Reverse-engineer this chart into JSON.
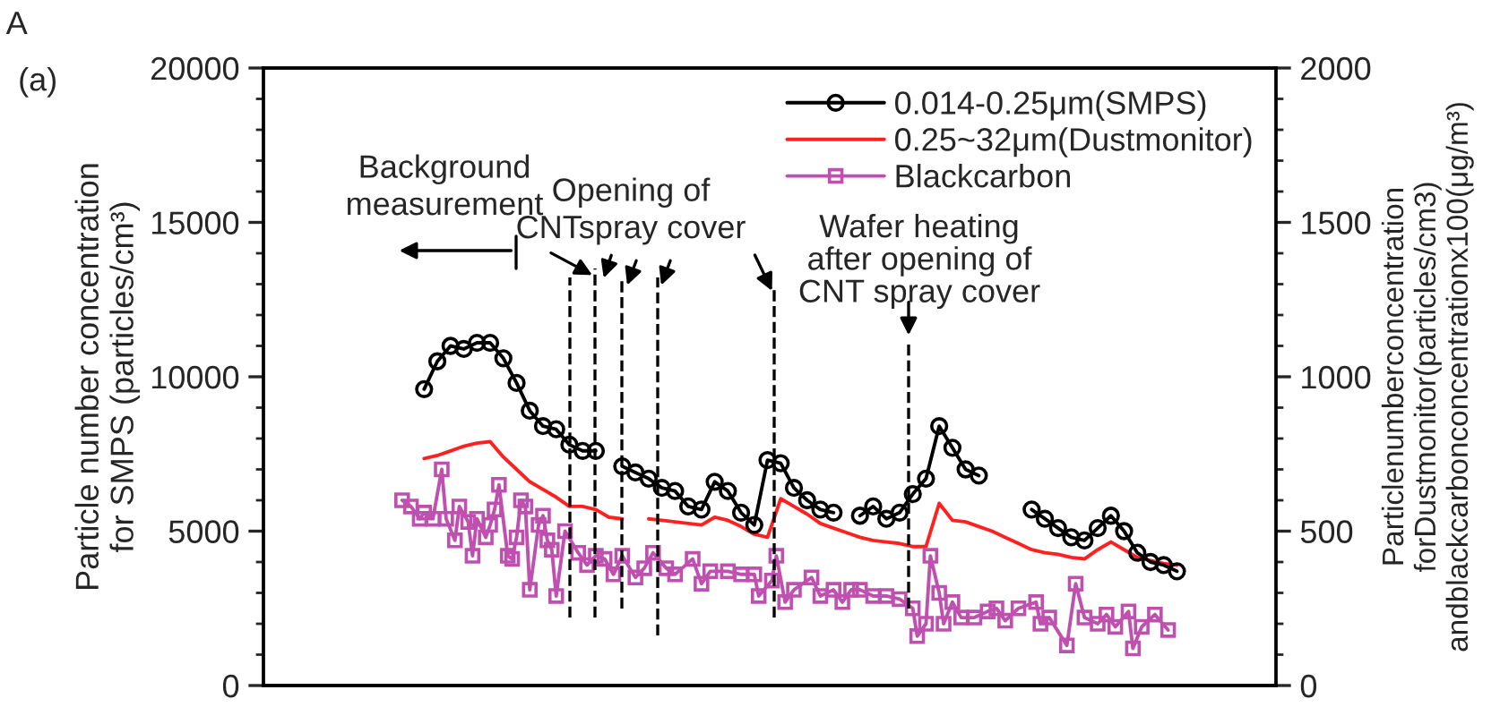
{
  "chart_data": {
    "type": "line",
    "categories": [
      null,
      null,
      null,
      null,
      null,
      null,
      null,
      null,
      null,
      null,
      null,
      null,
      null,
      null,
      null,
      null,
      null,
      null,
      null,
      null,
      null,
      null,
      null,
      null,
      null,
      null,
      null,
      null,
      null,
      null,
      null,
      null,
      null,
      null,
      null,
      null,
      null,
      null,
      null,
      null,
      null,
      null,
      null,
      null,
      null,
      null,
      null,
      null,
      null,
      null,
      null,
      null,
      null,
      null,
      null,
      null,
      null,
      null,
      null,
      null,
      null,
      null,
      null,
      null,
      null,
      null,
      null,
      null,
      null,
      null,
      null,
      null,
      null,
      null,
      null,
      null,
      null,
      null,
      null,
      null,
      null,
      null,
      null,
      null,
      null,
      null,
      null,
      null,
      null,
      null,
      null,
      null,
      null,
      null,
      null,
      null,
      null,
      null,
      null,
      null,
      null,
      null,
      null,
      null,
      null,
      null,
      null,
      null,
      null,
      null,
      null,
      null,
      null,
      null,
      null,
      null,
      null,
      null,
      null,
      null,
      null,
      null,
      null,
      null,
      null,
      null,
      null,
      null,
      null,
      null,
      null,
      null,
      null,
      null,
      null,
      null,
      null,
      null,
      null,
      null,
      null,
      null,
      null,
      null,
      null,
      null,
      null,
      null,
      null,
      null,
      null,
      null,
      null,
      null,
      null,
      null,
      null,
      null,
      null,
      null,
      null,
      null,
      null,
      null,
      null,
      null,
      null,
      null,
      null,
      null,
      null,
      null,
      null,
      null,
      null,
      null,
      null,
      null,
      null,
      null,
      null,
      null,
      null,
      null,
      null,
      null,
      null,
      null,
      null,
      null,
      null,
      null,
      null,
      null,
      null,
      null,
      null,
      null,
      null,
      null,
      null,
      null,
      null,
      null,
      null,
      null,
      null,
      null,
      null,
      null,
      null,
      null,
      null,
      null,
      null,
      null,
      null,
      null,
      null,
      null,
      null,
      null,
      null,
      null,
      null,
      null,
      null,
      null,
      null,
      null
    ],
    "ylabel": "Particle number concentration\nfor SMPS (particles/cm³)",
    "y2label": "Particlenumberconcentration\nforDustmonitor(particles/cm3)\nandblackcarbonconcentrationx100(μg/m³)",
    "ylim": [
      0,
      20000
    ],
    "yticks": [
      0,
      5000,
      10000,
      15000,
      20000
    ],
    "y2lim": [
      0,
      2000
    ],
    "y2ticks": [
      0,
      500,
      1000,
      1500,
      2000
    ],
    "legend": "top right",
    "tick_labels": "y",
    "grid": false,
    "series": [
      {
        "name": "0.014-0.25μm(SMPS)",
        "color": "#000000",
        "marker": "circle",
        "values": [
          null,
          null,
          null,
          null,
          null,
          null,
          null,
          null,
          null,
          null,
          null,
          null,
          null,
          null,
          null,
          null,
          null,
          null,
          null,
          null,
          null,
          null,
          null,
          null,
          null,
          null,
          null,
          null,
          null,
          null,
          null,
          null,
          null,
          null,
          null,
          null,
          9600,
          null,
          null,
          10500,
          null,
          null,
          11000,
          null,
          null,
          10900,
          null,
          null,
          11100,
          null,
          null,
          11100,
          null,
          null,
          10600,
          null,
          null,
          9800,
          null,
          null,
          8900,
          null,
          null,
          8400,
          null,
          null,
          8300,
          null,
          null,
          7800,
          null,
          null,
          7600,
          null,
          null,
          7600,
          null,
          null,
          null,
          null,
          null,
          7100,
          null,
          null,
          6900,
          null,
          null,
          6700,
          null,
          null,
          6400,
          null,
          null,
          6300,
          null,
          null,
          5800,
          null,
          null,
          5700,
          null,
          null,
          6600,
          null,
          null,
          6300,
          null,
          null,
          5600,
          null,
          null,
          5200,
          null,
          null,
          7300,
          null,
          null,
          7200,
          null,
          null,
          6400,
          null,
          null,
          6000,
          null,
          null,
          5700,
          null,
          null,
          5600,
          null,
          null,
          null,
          null,
          null,
          5500,
          null,
          null,
          5800,
          null,
          null,
          5400,
          null,
          null,
          5600,
          null,
          null,
          6200,
          null,
          null,
          6700,
          null,
          null,
          8400,
          null,
          null,
          7700,
          null,
          null,
          7000,
          null,
          null,
          6800,
          null,
          null,
          null,
          null,
          null,
          null,
          null,
          null,
          null,
          null,
          null,
          5700,
          null,
          null,
          5400,
          null,
          null,
          5100,
          null,
          null,
          4800,
          null,
          null,
          4700,
          null,
          null,
          5100,
          null,
          null,
          5500,
          null,
          null,
          5000,
          null,
          null,
          4300,
          null,
          null,
          4000,
          null,
          null,
          3900,
          null,
          null,
          3700,
          null,
          null,
          null,
          null,
          null,
          null,
          null,
          null,
          null,
          null,
          null,
          null,
          null,
          null,
          null,
          null,
          null,
          null,
          null,
          null,
          null,
          null
        ]
      },
      {
        "name": "0.25~32μm(Dustmonitor)",
        "color": "#ff2020",
        "marker": "none",
        "axis": "y2",
        "values": [
          null,
          null,
          null,
          null,
          null,
          null,
          null,
          null,
          null,
          null,
          null,
          null,
          null,
          null,
          null,
          null,
          null,
          null,
          null,
          null,
          null,
          null,
          null,
          null,
          null,
          null,
          null,
          null,
          null,
          null,
          null,
          null,
          null,
          null,
          null,
          null,
          735,
          null,
          null,
          745,
          null,
          null,
          760,
          null,
          null,
          775,
          null,
          null,
          785,
          null,
          null,
          790,
          null,
          null,
          740,
          null,
          null,
          700,
          null,
          null,
          660,
          null,
          null,
          635,
          null,
          null,
          610,
          null,
          null,
          580,
          null,
          null,
          580,
          null,
          null,
          570,
          null,
          null,
          545,
          null,
          null,
          540,
          null,
          null,
          null,
          null,
          null,
          540,
          null,
          null,
          535,
          null,
          null,
          530,
          null,
          null,
          525,
          null,
          null,
          520,
          null,
          null,
          545,
          null,
          null,
          535,
          null,
          null,
          515,
          null,
          null,
          490,
          null,
          null,
          480,
          null,
          null,
          605,
          null,
          null,
          580,
          null,
          null,
          555,
          null,
          null,
          525,
          null,
          null,
          510,
          null,
          null,
          495,
          null,
          null,
          480,
          null,
          null,
          470,
          null,
          null,
          465,
          null,
          null,
          460,
          null,
          null,
          450,
          null,
          null,
          450,
          null,
          null,
          590,
          null,
          null,
          535,
          null,
          null,
          530,
          null,
          null,
          515,
          null,
          null,
          500,
          null,
          null,
          480,
          null,
          null,
          460,
          null,
          null,
          440,
          null,
          null,
          430,
          null,
          null,
          425,
          null,
          null,
          415,
          null,
          null,
          410,
          null,
          null,
          440,
          null,
          null,
          465,
          null,
          null,
          440,
          null,
          null,
          415,
          null,
          null,
          405,
          null,
          null,
          395,
          null,
          null,
          390,
          null,
          null,
          null,
          null,
          null,
          null,
          null,
          null,
          null,
          null,
          null,
          null,
          null,
          null,
          null,
          null,
          null,
          null,
          null,
          null,
          null,
          null
        ]
      },
      {
        "name": "Blackcarbon",
        "color": "#c050b0",
        "marker": "square",
        "axis": "y2",
        "values": [
          null,
          null,
          null,
          null,
          null,
          null,
          null,
          null,
          null,
          null,
          null,
          null,
          null,
          null,
          null,
          null,
          null,
          null,
          null,
          null,
          null,
          null,
          null,
          null,
          null,
          null,
          null,
          null,
          null,
          null,
          null,
          600,
          null,
          580,
          null,
          540,
          560,
          null,
          540,
          null,
          700,
          540,
          null,
          470,
          580,
          null,
          530,
          420,
          540,
          null,
          480,
          520,
          570,
          650,
          null,
          420,
          410,
          480,
          600,
          580,
          310,
          null,
          520,
          550,
          470,
          440,
          290,
          null,
          500,
          null,
          null,
          430,
          null,
          390,
          null,
          420,
          null,
          410,
          null,
          360,
          null,
          420,
          null,
          null,
          350,
          null,
          380,
          null,
          430,
          null,
          null,
          380,
          null,
          360,
          null,
          null,
          null,
          410,
          null,
          330,
          null,
          370,
          null,
          null,
          null,
          370,
          null,
          null,
          360,
          null,
          null,
          360,
          290,
          null,
          null,
          340,
          420,
          null,
          270,
          null,
          310,
          null,
          null,
          null,
          350,
          null,
          290,
          null,
          null,
          310,
          null,
          270,
          null,
          310,
          null,
          310,
          null,
          null,
          290,
          null,
          null,
          290,
          null,
          null,
          280,
          null,
          null,
          250,
          160,
          null,
          200,
          420,
          null,
          300,
          200,
          null,
          270,
          null,
          220,
          null,
          null,
          220,
          null,
          null,
          240,
          null,
          250,
          null,
          210,
          null,
          null,
          250,
          null,
          null,
          null,
          270,
          200,
          null,
          220,
          null,
          null,
          null,
          130,
          null,
          330,
          null,
          220,
          null,
          null,
          200,
          null,
          230,
          null,
          190,
          null,
          null,
          240,
          120,
          null,
          190,
          null,
          null,
          230,
          null,
          null,
          180,
          null,
          null,
          null,
          null,
          null,
          null,
          null,
          null,
          null,
          null,
          null,
          null,
          null,
          null,
          null,
          null,
          null,
          null,
          null,
          null,
          null,
          null,
          null,
          null
        ]
      }
    ],
    "annotations": [
      "A",
      "(a)",
      "Background\nmeasurement",
      "Opening of\nCNTspray cover",
      "Wafer heating\nafter opening of\nCNT spray cover"
    ]
  }
}
